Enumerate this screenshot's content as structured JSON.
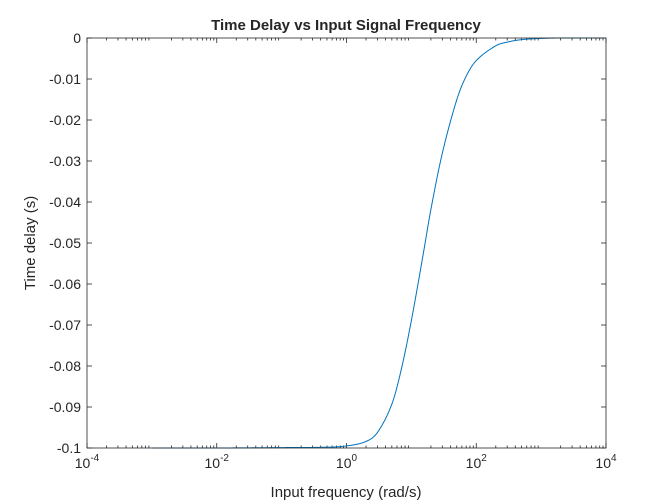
{
  "chart_data": {
    "type": "line",
    "title": "Time Delay vs Input Signal Frequency",
    "xlabel": "Input frequency (rad/s)",
    "ylabel": "Time delay (s)",
    "xscale": "log",
    "xlim": [
      0.0001,
      10000
    ],
    "ylim": [
      -0.1,
      0
    ],
    "grid": false,
    "x_ticks": [
      {
        "base": "10",
        "exp": "-4",
        "value": 0.0001
      },
      {
        "base": "10",
        "exp": "-2",
        "value": 0.01
      },
      {
        "base": "10",
        "exp": "0",
        "value": 1
      },
      {
        "base": "10",
        "exp": "2",
        "value": 100
      },
      {
        "base": "10",
        "exp": "4",
        "value": 10000
      }
    ],
    "y_ticks": [
      "0",
      "-0.01",
      "-0.02",
      "-0.03",
      "-0.04",
      "-0.05",
      "-0.06",
      "-0.07",
      "-0.08",
      "-0.09",
      "-0.1"
    ],
    "series": [
      {
        "color": "#0072BD",
        "x": [
          0.001,
          0.01,
          0.1,
          0.5,
          1,
          2,
          3,
          5,
          7,
          10,
          15,
          20,
          30,
          50,
          70,
          100,
          200,
          300,
          500,
          1000,
          2000,
          5000,
          10000
        ],
        "y": [
          -0.1,
          -0.1,
          -0.0999,
          -0.0998,
          -0.0995,
          -0.0984,
          -0.0962,
          -0.0893,
          -0.0808,
          -0.0689,
          -0.0533,
          -0.0418,
          -0.0281,
          -0.0151,
          -0.0093,
          -0.0055,
          -0.0019,
          -0.001,
          -0.0004,
          -0.0001,
          0,
          0,
          0
        ]
      }
    ]
  }
}
